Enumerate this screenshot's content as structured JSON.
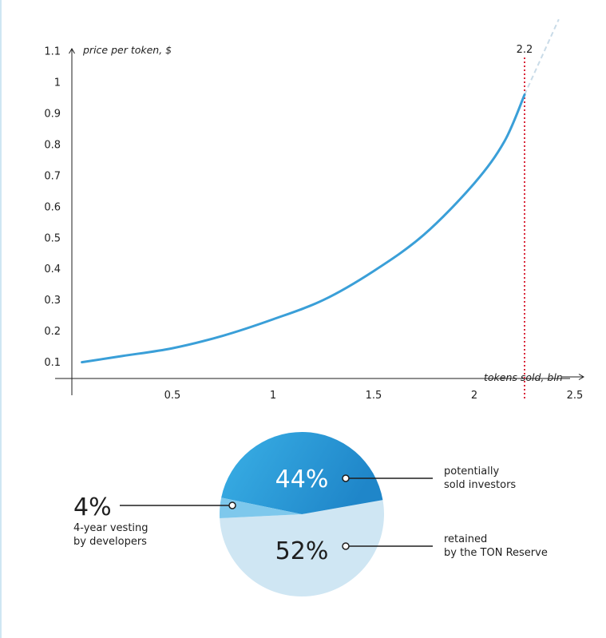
{
  "chart_data": [
    {
      "type": "line",
      "ylabel": "price per token, $",
      "xlabel": "tokens sold, bln",
      "x_ticks": [
        "0.5",
        "1",
        "1.5",
        "2",
        "2.5"
      ],
      "y_ticks": [
        "0.1",
        "0.2",
        "0.3",
        "0.4",
        "0.5",
        "0.6",
        "0.7",
        "0.8",
        "0.9",
        "1",
        "1.1"
      ],
      "xlim": [
        0,
        2.5
      ],
      "ylim": [
        0,
        1.1
      ],
      "series": [
        {
          "x": [
            0.05,
            0.25,
            0.5,
            0.75,
            1.0,
            1.25,
            1.5,
            1.75,
            2.0,
            2.15,
            2.25
          ],
          "y": [
            0.1,
            0.12,
            0.145,
            0.185,
            0.238,
            0.3,
            0.393,
            0.51,
            0.675,
            0.81,
            0.96
          ]
        }
      ],
      "extension_x": [
        2.25,
        2.42
      ],
      "marker": {
        "x": 2.25,
        "label": "2.2"
      },
      "colors": {
        "line": "#3a9fd8",
        "marker": "#d9273a",
        "extension": "#c9dbe8"
      }
    },
    {
      "type": "pie",
      "slices": [
        {
          "label": "44%",
          "value": 44,
          "caption": [
            "potentially",
            "sold investors"
          ],
          "color": "#2a9bd9"
        },
        {
          "label": "4%",
          "value": 4,
          "caption": [
            "4-year vesting",
            "by developers"
          ],
          "color": "#7ec8ec"
        },
        {
          "label": "52%",
          "value": 52,
          "caption": [
            "retained",
            "by the TON Reserve"
          ],
          "color": "#cfe6f3"
        }
      ]
    }
  ]
}
